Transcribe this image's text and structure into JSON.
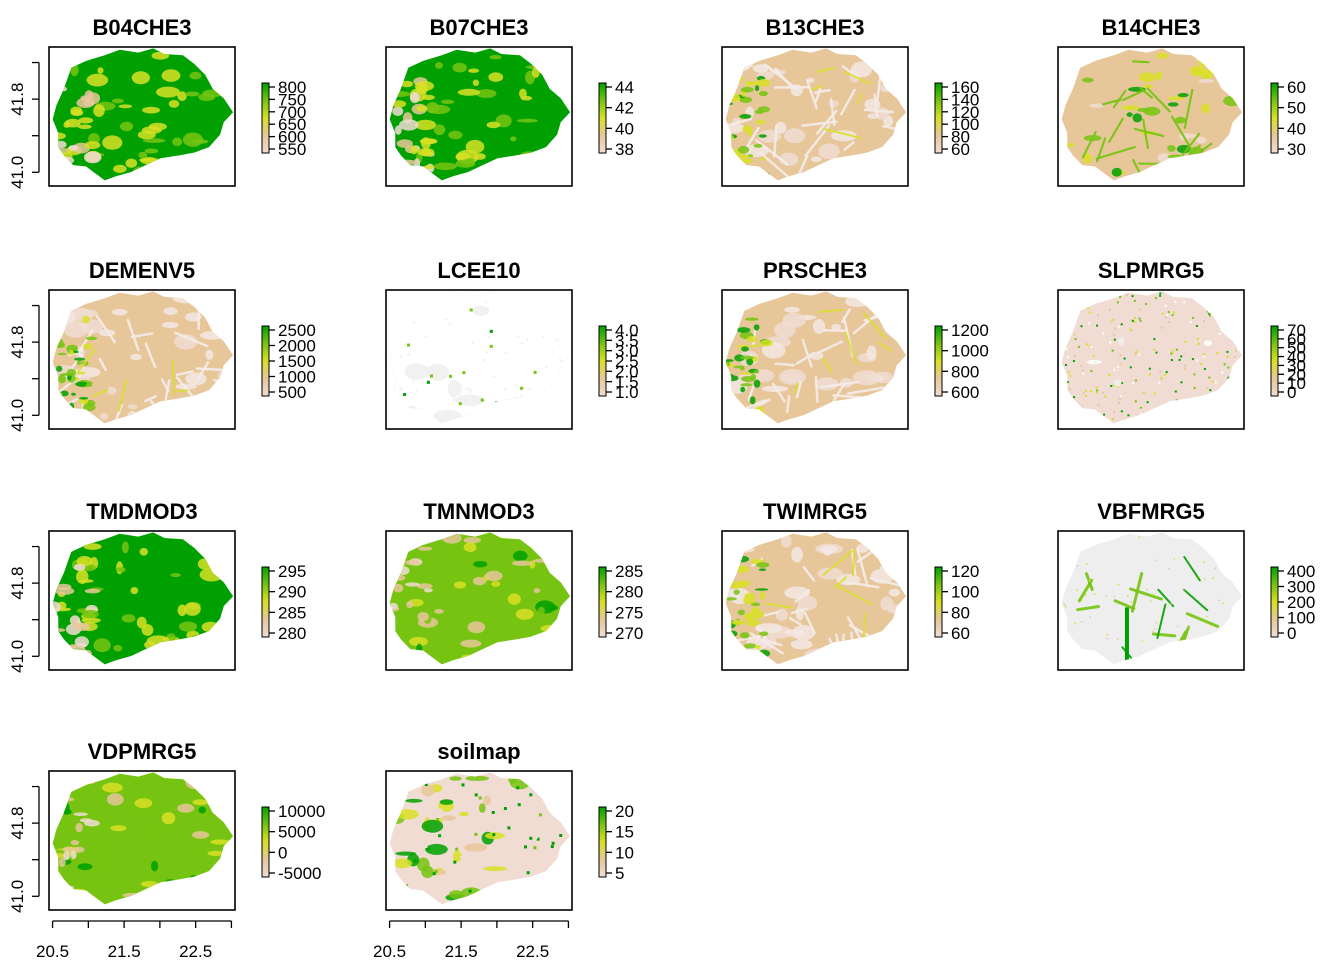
{
  "colors": {
    "scale": [
      "#f0dcd2",
      "#e7c79a",
      "#d8e024",
      "#76c411",
      "#00a000"
    ],
    "background": "#ffffff",
    "nodata_light": "#efeeee"
  },
  "chart_data": [
    {
      "type": "heatmap",
      "title": "B04CHE3",
      "legend_ticks": [
        "800",
        "750",
        "700",
        "650",
        "600",
        "550"
      ],
      "pattern": "high-green",
      "xaxis": false,
      "yaxis": true
    },
    {
      "type": "heatmap",
      "title": "B07CHE3",
      "legend_ticks": [
        "44",
        "42",
        "40",
        "38"
      ],
      "pattern": "high-green",
      "xaxis": false,
      "yaxis": false
    },
    {
      "type": "heatmap",
      "title": "B13CHE3",
      "legend_ticks": [
        "160",
        "140",
        "120",
        "100",
        "80",
        "60"
      ],
      "pattern": "low-pink",
      "xaxis": false,
      "yaxis": false
    },
    {
      "type": "heatmap",
      "title": "B14CHE3",
      "legend_ticks": [
        "60",
        "50",
        "40",
        "30"
      ],
      "pattern": "mixed",
      "xaxis": false,
      "yaxis": false
    },
    {
      "type": "heatmap",
      "title": "DEMENV5",
      "legend_ticks": [
        "2500",
        "2000",
        "1500",
        "1000",
        "500"
      ],
      "pattern": "low-pink",
      "xaxis": false,
      "yaxis": true
    },
    {
      "type": "heatmap",
      "title": "LCEE10",
      "legend_ticks": [
        "4.0",
        "3.5",
        "3.0",
        "2.5",
        "2.0",
        "1.5",
        "1.0"
      ],
      "pattern": "categorical-tan",
      "xaxis": false,
      "yaxis": false
    },
    {
      "type": "heatmap",
      "title": "PRSCHE3",
      "legend_ticks": [
        "1200",
        "1000",
        "800",
        "600"
      ],
      "pattern": "low-pink",
      "xaxis": false,
      "yaxis": false
    },
    {
      "type": "heatmap",
      "title": "SLPMRG5",
      "legend_ticks": [
        "70",
        "60",
        "50",
        "40",
        "30",
        "20",
        "10",
        "0"
      ],
      "pattern": "speckle-pink",
      "xaxis": false,
      "yaxis": false
    },
    {
      "type": "heatmap",
      "title": "TMDMOD3",
      "legend_ticks": [
        "295",
        "290",
        "285",
        "280"
      ],
      "pattern": "high-green",
      "xaxis": false,
      "yaxis": true
    },
    {
      "type": "heatmap",
      "title": "TMNMOD3",
      "legend_ticks": [
        "285",
        "280",
        "275",
        "270"
      ],
      "pattern": "yellow-green",
      "xaxis": false,
      "yaxis": false
    },
    {
      "type": "heatmap",
      "title": "TWIMRG5",
      "legend_ticks": [
        "120",
        "100",
        "80",
        "60"
      ],
      "pattern": "low-pink",
      "xaxis": false,
      "yaxis": false
    },
    {
      "type": "heatmap",
      "title": "VBFMRG5",
      "legend_ticks": [
        "400",
        "300",
        "200",
        "100",
        "0"
      ],
      "pattern": "sparse-green",
      "xaxis": false,
      "yaxis": false
    },
    {
      "type": "heatmap",
      "title": "VDPMRG5",
      "legend_ticks": [
        "10000",
        "5000",
        "0",
        "-5000"
      ],
      "pattern": "yellow-green",
      "xaxis": true,
      "yaxis": true
    },
    {
      "type": "heatmap",
      "title": "soilmap",
      "legend_ticks": [
        "20",
        "15",
        "10",
        "5"
      ],
      "pattern": "categorical-green",
      "xaxis": true,
      "yaxis": false
    }
  ],
  "axes": {
    "y_ticks": [
      "41.0",
      "41.8"
    ],
    "y_range": [
      40.85,
      42.37
    ],
    "y_tick_values": [
      41.0,
      41.4,
      41.8,
      42.2
    ],
    "x_ticks": [
      "20.5",
      "21.5",
      "22.5"
    ],
    "x_range": [
      20.45,
      23.05
    ],
    "x_tick_values": [
      20.5,
      21.0,
      21.5,
      22.0,
      22.5,
      23.0
    ]
  }
}
